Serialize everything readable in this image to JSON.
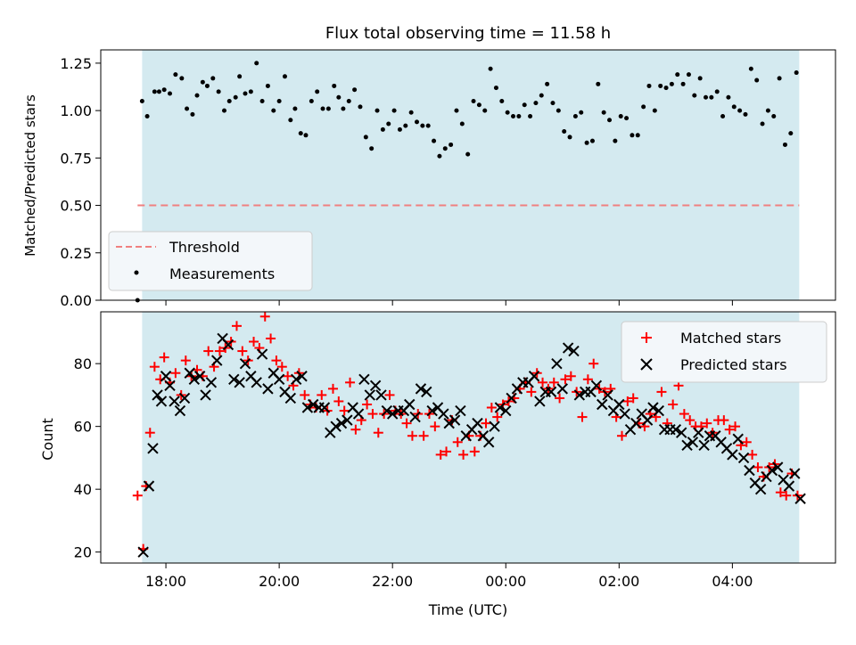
{
  "chart_data": [
    {
      "panel": "top",
      "type": "scatter",
      "title": "Flux total observing time = 11.58 h",
      "ylabel": "Matched/Predicted stars",
      "ylim": [
        0.0,
        1.32
      ],
      "yticks": [
        "0.00",
        "0.25",
        "0.50",
        "0.75",
        "1.00",
        "1.25"
      ],
      "ytick_values": [
        0.0,
        0.25,
        0.5,
        0.75,
        1.0,
        1.25
      ],
      "xlim_hours": [
        16.85,
        29.82
      ],
      "xticks_hours": [
        18,
        20,
        22,
        24,
        26,
        28
      ],
      "shaded_span_hours": [
        17.58,
        29.18
      ],
      "shade_color": "#d4eaf0",
      "grid": false,
      "legend_position": "lower-left",
      "series": [
        {
          "name": "Threshold",
          "kind": "dashed-line",
          "color": "#f08080",
          "x": [
            17.5,
            29.18
          ],
          "y": [
            0.5,
            0.5
          ]
        },
        {
          "name": "Measurements",
          "kind": "points",
          "color": "#000000",
          "x": [
            17.5,
            17.58,
            17.67,
            17.8,
            17.88,
            17.97,
            18.07,
            18.17,
            18.28,
            18.37,
            18.47,
            18.55,
            18.65,
            18.73,
            18.83,
            18.93,
            19.03,
            19.12,
            19.23,
            19.3,
            19.4,
            19.5,
            19.6,
            19.7,
            19.8,
            19.9,
            20.0,
            20.1,
            20.2,
            20.28,
            20.38,
            20.47,
            20.57,
            20.67,
            20.77,
            20.87,
            20.97,
            21.05,
            21.13,
            21.23,
            21.33,
            21.43,
            21.53,
            21.63,
            21.73,
            21.83,
            21.93,
            22.03,
            22.13,
            22.23,
            22.33,
            22.43,
            22.53,
            22.63,
            22.73,
            22.83,
            22.93,
            23.03,
            23.13,
            23.23,
            23.33,
            23.43,
            23.53,
            23.63,
            23.73,
            23.83,
            23.93,
            24.03,
            24.13,
            24.23,
            24.33,
            24.43,
            24.53,
            24.63,
            24.73,
            24.83,
            24.93,
            25.03,
            25.13,
            25.23,
            25.33,
            25.43,
            25.53,
            25.63,
            25.73,
            25.83,
            25.93,
            26.03,
            26.13,
            26.23,
            26.33,
            26.43,
            26.53,
            26.63,
            26.73,
            26.83,
            26.93,
            27.03,
            27.13,
            27.23,
            27.33,
            27.43,
            27.53,
            27.63,
            27.73,
            27.83,
            27.93,
            28.03,
            28.13,
            28.23,
            28.33,
            28.43,
            28.53,
            28.63,
            28.73,
            28.83,
            28.93,
            29.03,
            29.13
          ],
          "y": [
            0.0,
            1.05,
            0.97,
            1.1,
            1.1,
            1.11,
            1.09,
            1.19,
            1.17,
            1.01,
            0.98,
            1.08,
            1.15,
            1.13,
            1.17,
            1.1,
            1.0,
            1.05,
            1.07,
            1.18,
            1.09,
            1.1,
            1.25,
            1.05,
            1.13,
            1.0,
            1.05,
            1.18,
            0.95,
            1.01,
            0.88,
            0.87,
            1.05,
            1.1,
            1.01,
            1.01,
            1.13,
            1.07,
            1.01,
            1.05,
            1.11,
            1.02,
            0.86,
            0.8,
            1.0,
            0.9,
            0.93,
            1.0,
            0.9,
            0.92,
            0.99,
            0.94,
            0.92,
            0.92,
            0.84,
            0.76,
            0.8,
            0.82,
            1.0,
            0.93,
            0.77,
            1.05,
            1.03,
            1.0,
            1.22,
            1.12,
            1.05,
            0.99,
            0.97,
            0.97,
            1.03,
            0.97,
            1.04,
            1.08,
            1.14,
            1.04,
            1.0,
            0.89,
            0.86,
            0.97,
            0.99,
            0.83,
            0.84,
            1.14,
            0.99,
            0.95,
            0.84,
            0.97,
            0.96,
            0.87,
            0.87,
            1.02,
            1.13,
            1.0,
            1.13,
            1.12,
            1.14,
            1.19,
            1.14,
            1.19,
            1.08,
            1.17,
            1.07,
            1.07,
            1.1,
            0.97,
            1.07,
            1.02,
            1.0,
            0.98,
            1.22,
            1.16,
            0.93,
            1.0,
            0.97,
            1.17,
            0.82,
            0.88,
            1.2
          ]
        }
      ]
    },
    {
      "panel": "bottom",
      "type": "scatter",
      "xlabel": "Time (UTC)",
      "ylabel": "Count",
      "ylim": [
        16.5,
        96.5
      ],
      "yticks": [
        "20",
        "40",
        "60",
        "80"
      ],
      "ytick_values": [
        20,
        40,
        60,
        80
      ],
      "xlim_hours": [
        16.85,
        29.82
      ],
      "xticks": [
        "18:00",
        "20:00",
        "22:00",
        "00:00",
        "02:00",
        "04:00"
      ],
      "xticks_hours": [
        18,
        20,
        22,
        24,
        26,
        28
      ],
      "shaded_span_hours": [
        17.58,
        29.18
      ],
      "shade_color": "#d4eaf0",
      "grid": false,
      "legend_position": "upper-right",
      "series": [
        {
          "name": "Matched stars",
          "marker": "plus",
          "color": "#ff0000",
          "x": [
            17.5,
            17.6,
            17.65,
            17.72,
            17.8,
            17.9,
            17.97,
            18.07,
            18.17,
            18.27,
            18.35,
            18.45,
            18.55,
            18.65,
            18.75,
            18.85,
            18.95,
            19.05,
            19.15,
            19.25,
            19.35,
            19.45,
            19.55,
            19.65,
            19.75,
            19.85,
            19.95,
            20.05,
            20.15,
            20.25,
            20.35,
            20.45,
            20.55,
            20.65,
            20.75,
            20.85,
            20.95,
            21.05,
            21.15,
            21.25,
            21.35,
            21.45,
            21.55,
            21.65,
            21.75,
            21.85,
            21.95,
            22.05,
            22.15,
            22.25,
            22.35,
            22.45,
            22.55,
            22.65,
            22.75,
            22.85,
            22.95,
            23.05,
            23.15,
            23.25,
            23.35,
            23.45,
            23.55,
            23.65,
            23.75,
            23.85,
            23.95,
            24.05,
            24.15,
            24.25,
            24.35,
            24.45,
            24.55,
            24.65,
            24.75,
            24.85,
            24.95,
            25.05,
            25.15,
            25.25,
            25.35,
            25.45,
            25.55,
            25.65,
            25.75,
            25.85,
            25.95,
            26.05,
            26.15,
            26.25,
            26.35,
            26.45,
            26.55,
            26.65,
            26.75,
            26.85,
            26.95,
            27.05,
            27.15,
            27.25,
            27.35,
            27.45,
            27.55,
            27.65,
            27.75,
            27.85,
            27.95,
            28.05,
            28.15,
            28.25,
            28.35,
            28.45,
            28.55,
            28.65,
            28.75,
            28.85,
            28.95,
            29.05,
            29.15
          ],
          "y": [
            38,
            21,
            41,
            58,
            79,
            75,
            82,
            74,
            77,
            70,
            81,
            76,
            78,
            76,
            84,
            79,
            84,
            85,
            87,
            92,
            84,
            81,
            87,
            85,
            95,
            88,
            81,
            79,
            76,
            73,
            77,
            70,
            67,
            66,
            70,
            65,
            72,
            68,
            65,
            74,
            59,
            62,
            67,
            64,
            58,
            64,
            70,
            65,
            64,
            61,
            57,
            64,
            57,
            64,
            60,
            51,
            52,
            62,
            55,
            51,
            57,
            52,
            57,
            61,
            66,
            63,
            67,
            68,
            69,
            72,
            74,
            71,
            77,
            74,
            72,
            74,
            69,
            75,
            76,
            71,
            63,
            75,
            80,
            72,
            71,
            72,
            63,
            57,
            68,
            69,
            61,
            60,
            64,
            63,
            71,
            61,
            67,
            73,
            64,
            62,
            60,
            60,
            61,
            58,
            62,
            62,
            59,
            60,
            54,
            55,
            51,
            47,
            44,
            47,
            48,
            39,
            38,
            45,
            38
          ]
        },
        {
          "name": "Predicted stars",
          "marker": "x",
          "color": "#000000",
          "x": [
            17.6,
            17.7,
            17.77,
            17.85,
            17.92,
            18.0,
            18.07,
            18.15,
            18.25,
            18.33,
            18.42,
            18.5,
            18.6,
            18.7,
            18.8,
            18.9,
            19.0,
            19.1,
            19.2,
            19.3,
            19.4,
            19.5,
            19.6,
            19.7,
            19.8,
            19.9,
            20.0,
            20.1,
            20.2,
            20.3,
            20.4,
            20.5,
            20.6,
            20.7,
            20.8,
            20.9,
            21.0,
            21.1,
            21.2,
            21.3,
            21.4,
            21.5,
            21.6,
            21.7,
            21.8,
            21.9,
            22.0,
            22.1,
            22.2,
            22.3,
            22.4,
            22.5,
            22.6,
            22.7,
            22.8,
            22.9,
            23.0,
            23.1,
            23.2,
            23.3,
            23.4,
            23.5,
            23.6,
            23.7,
            23.8,
            23.9,
            24.0,
            24.1,
            24.2,
            24.3,
            24.4,
            24.5,
            24.6,
            24.7,
            24.8,
            24.9,
            25.0,
            25.1,
            25.2,
            25.3,
            25.4,
            25.5,
            25.6,
            25.7,
            25.8,
            25.9,
            26.0,
            26.1,
            26.2,
            26.3,
            26.4,
            26.5,
            26.6,
            26.7,
            26.8,
            26.9,
            27.0,
            27.1,
            27.2,
            27.3,
            27.4,
            27.5,
            27.6,
            27.7,
            27.8,
            27.9,
            28.0,
            28.1,
            28.2,
            28.3,
            28.4,
            28.5,
            28.6,
            28.7,
            28.8,
            28.9,
            29.0,
            29.1,
            29.2
          ],
          "y": [
            20,
            41,
            53,
            70,
            68,
            76,
            73,
            68,
            65,
            69,
            77,
            75,
            76,
            70,
            74,
            81,
            88,
            86,
            75,
            74,
            80,
            76,
            74,
            83,
            72,
            77,
            75,
            71,
            69,
            75,
            76,
            66,
            67,
            66,
            66,
            58,
            60,
            61,
            62,
            66,
            64,
            75,
            70,
            73,
            70,
            65,
            64,
            65,
            65,
            67,
            63,
            72,
            71,
            65,
            66,
            64,
            61,
            62,
            65,
            57,
            59,
            61,
            57,
            55,
            60,
            66,
            65,
            69,
            72,
            74,
            74,
            76,
            68,
            71,
            71,
            80,
            72,
            85,
            84,
            70,
            71,
            71,
            73,
            67,
            70,
            65,
            67,
            64,
            59,
            61,
            64,
            62,
            66,
            65,
            59,
            59,
            59,
            58,
            54,
            55,
            58,
            54,
            57,
            57,
            55,
            53,
            51,
            56,
            50,
            46,
            42,
            40,
            44,
            46,
            47,
            43,
            41,
            45,
            37
          ]
        }
      ]
    }
  ]
}
